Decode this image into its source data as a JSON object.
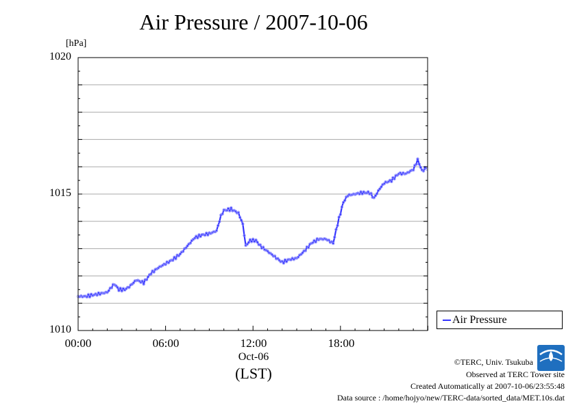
{
  "chart_data": {
    "type": "line",
    "title": "Air Pressure / 2007-10-06",
    "yunit": "[hPa]",
    "ylim": [
      1010,
      1020
    ],
    "ytick_labels": [
      "1020",
      "1015",
      "1010"
    ],
    "xlim_hours": [
      0,
      23.98
    ],
    "xtick_labels": [
      "00:00",
      "06:00",
      "12:00",
      "18:00"
    ],
    "xdate_label": "Oct-06",
    "xlabel": "(LST)",
    "grid": true,
    "legend_position": "bottom-right outside",
    "series": [
      {
        "name": "Air Pressure",
        "color": "#3333ff",
        "points": [
          [
            0.0,
            1011.25
          ],
          [
            0.5,
            1011.25
          ],
          [
            1.0,
            1011.3
          ],
          [
            1.5,
            1011.35
          ],
          [
            2.0,
            1011.4
          ],
          [
            2.3,
            1011.6
          ],
          [
            2.5,
            1011.7
          ],
          [
            2.8,
            1011.5
          ],
          [
            3.2,
            1011.5
          ],
          [
            3.5,
            1011.6
          ],
          [
            4.0,
            1011.85
          ],
          [
            4.5,
            1011.75
          ],
          [
            5.0,
            1012.1
          ],
          [
            5.5,
            1012.3
          ],
          [
            6.0,
            1012.45
          ],
          [
            6.5,
            1012.6
          ],
          [
            7.0,
            1012.8
          ],
          [
            7.5,
            1013.1
          ],
          [
            8.0,
            1013.4
          ],
          [
            8.5,
            1013.5
          ],
          [
            9.0,
            1013.55
          ],
          [
            9.5,
            1013.65
          ],
          [
            9.8,
            1014.2
          ],
          [
            10.0,
            1014.4
          ],
          [
            10.5,
            1014.45
          ],
          [
            11.0,
            1014.3
          ],
          [
            11.3,
            1013.9
          ],
          [
            11.5,
            1013.1
          ],
          [
            11.8,
            1013.3
          ],
          [
            12.2,
            1013.3
          ],
          [
            12.5,
            1013.1
          ],
          [
            13.0,
            1012.9
          ],
          [
            13.5,
            1012.7
          ],
          [
            14.0,
            1012.5
          ],
          [
            14.5,
            1012.6
          ],
          [
            15.0,
            1012.65
          ],
          [
            15.5,
            1012.9
          ],
          [
            16.0,
            1013.2
          ],
          [
            16.5,
            1013.35
          ],
          [
            17.0,
            1013.35
          ],
          [
            17.5,
            1013.2
          ],
          [
            17.8,
            1013.9
          ],
          [
            18.2,
            1014.7
          ],
          [
            18.5,
            1014.95
          ],
          [
            19.0,
            1015.0
          ],
          [
            19.5,
            1015.05
          ],
          [
            20.0,
            1015.05
          ],
          [
            20.3,
            1014.85
          ],
          [
            20.7,
            1015.2
          ],
          [
            21.0,
            1015.4
          ],
          [
            21.5,
            1015.5
          ],
          [
            22.0,
            1015.75
          ],
          [
            22.5,
            1015.75
          ],
          [
            23.0,
            1015.9
          ],
          [
            23.3,
            1016.25
          ],
          [
            23.6,
            1015.85
          ],
          [
            24.0,
            1016.0
          ]
        ]
      }
    ]
  },
  "credits": {
    "copyright": "©TERC, Univ. Tsukuba",
    "observed": "Observed at TERC Tower site",
    "created": "Created Automatically at 2007-10-06/23:55:48",
    "source": "Data source : /home/hojyo/new/TERC-data/sorted_data/MET.10s.dat"
  },
  "logo": {
    "text": "TERC",
    "color": "#1f6fbf"
  }
}
